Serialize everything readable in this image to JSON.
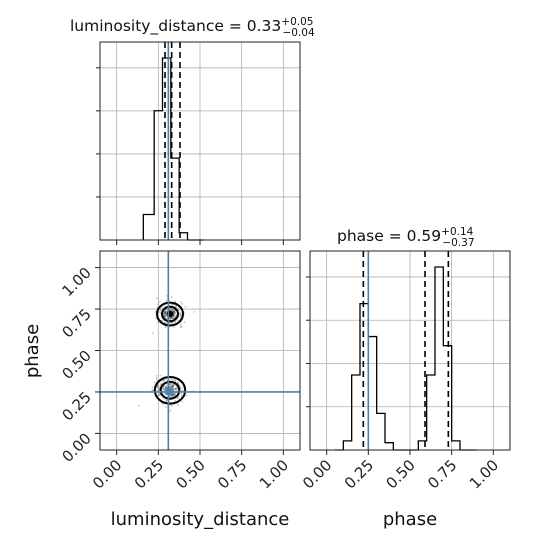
{
  "chart_data": {
    "type": "corner",
    "parameters": [
      "luminosity_distance",
      "phase"
    ],
    "truths": {
      "luminosity_distance": 0.31,
      "phase": 0.25
    },
    "axes": {
      "luminosity_distance": {
        "range": [
          -0.1,
          1.1
        ],
        "ticks": [
          "0.00",
          "0.25",
          "0.50",
          "0.75",
          "1.00"
        ],
        "label": "luminosity_distance"
      },
      "phase": {
        "range": [
          -0.1,
          1.1
        ],
        "ticks": [
          "0.00",
          "0.25",
          "0.50",
          "0.75",
          "1.00"
        ],
        "label": "phase"
      }
    },
    "marginals": [
      {
        "parameter": "luminosity_distance",
        "title": {
          "text": "luminosity_distance = 0.33",
          "upper": "+0.05",
          "lower": "−0.04"
        },
        "median": 0.33,
        "quantiles": [
          0.29,
          0.33,
          0.38
        ],
        "bin_edges": [
          0.16,
          0.225,
          0.275,
          0.325,
          0.375,
          0.425,
          0.475,
          0.525
        ],
        "heights": [
          0.14,
          0.71,
          1.0,
          0.45,
          0.04,
          0.0,
          0.0
        ],
        "grid": true
      },
      {
        "parameter": "phase",
        "title": {
          "text": "phase = 0.59",
          "upper": "+0.14",
          "lower": "−0.37"
        },
        "median": 0.59,
        "quantiles": [
          0.22,
          0.59,
          0.73
        ],
        "bin_edges": [
          0.05,
          0.1,
          0.15,
          0.2,
          0.25,
          0.3,
          0.35,
          0.4,
          0.45,
          0.5,
          0.55,
          0.6,
          0.65,
          0.7,
          0.75,
          0.8,
          0.85,
          0.9
        ],
        "heights": [
          0.0,
          0.05,
          0.41,
          0.8,
          0.62,
          0.2,
          0.04,
          0.0,
          0.0,
          0.0,
          0.05,
          0.41,
          1.0,
          0.57,
          0.05,
          0.0,
          0.0
        ],
        "grid": true
      }
    ],
    "joint": {
      "x": "luminosity_distance",
      "y": "phase",
      "modes": [
        {
          "x": 0.32,
          "y": 0.72,
          "sx": 0.03,
          "sy": 0.03
        },
        {
          "x": 0.32,
          "y": 0.26,
          "sx": 0.035,
          "sy": 0.035
        }
      ],
      "grid": true
    },
    "colors": {
      "truth": "#4682b4",
      "hist": "#000000",
      "grid": "#b0b0b0",
      "samples": "#555555"
    }
  }
}
